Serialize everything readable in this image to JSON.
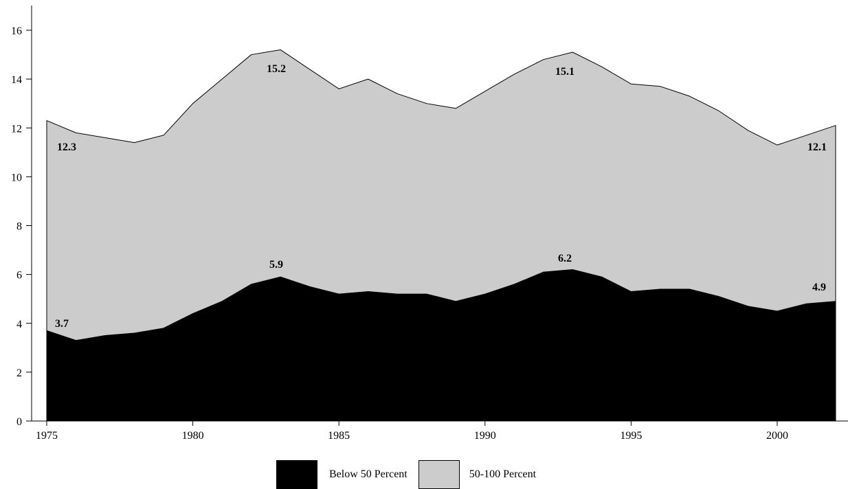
{
  "chart_data": {
    "type": "area",
    "stacked": true,
    "x": [
      1975,
      1976,
      1977,
      1978,
      1979,
      1980,
      1981,
      1982,
      1983,
      1984,
      1985,
      1986,
      1987,
      1988,
      1989,
      1990,
      1991,
      1992,
      1993,
      1994,
      1995,
      1996,
      1997,
      1998,
      1999,
      2000,
      2001,
      2002
    ],
    "series": [
      {
        "name": "Below 50 Percent",
        "color": "#000000",
        "values": [
          3.7,
          3.3,
          3.5,
          3.6,
          3.8,
          4.4,
          4.9,
          5.6,
          5.9,
          5.5,
          5.2,
          5.3,
          5.2,
          5.2,
          4.9,
          5.2,
          5.6,
          6.1,
          6.2,
          5.9,
          5.3,
          5.4,
          5.4,
          5.1,
          4.7,
          4.5,
          4.8,
          4.9
        ]
      },
      {
        "name": "50-100 Percent",
        "color": "#cccccc",
        "totals": [
          12.3,
          11.8,
          11.6,
          11.4,
          11.7,
          13.0,
          14.0,
          15.0,
          15.2,
          14.4,
          13.6,
          14.0,
          13.4,
          13.0,
          12.8,
          13.5,
          14.2,
          14.8,
          15.1,
          14.5,
          13.8,
          13.7,
          13.3,
          12.7,
          11.9,
          11.3,
          11.7,
          12.1
        ]
      }
    ],
    "ylim": [
      0,
      17
    ],
    "yticks": [
      "0",
      "2",
      "4",
      "6",
      "8",
      "10",
      "12",
      "14",
      "16"
    ],
    "xticks": [
      "1975",
      "1980",
      "1985",
      "1990",
      "1995",
      "2000"
    ],
    "annotations": [
      {
        "x": 1975,
        "y": 3.7,
        "text": "3.7"
      },
      {
        "x": 1983,
        "y": 5.9,
        "text": "5.9"
      },
      {
        "x": 1993,
        "y": 6.2,
        "text": "6.2"
      },
      {
        "x": 2002,
        "y": 4.9,
        "text": "4.9"
      },
      {
        "x": 1975,
        "y": 12.3,
        "text": "12.3"
      },
      {
        "x": 1983,
        "y": 15.2,
        "text": "15.2"
      },
      {
        "x": 1993,
        "y": 15.1,
        "text": "15.1"
      },
      {
        "x": 2002,
        "y": 12.1,
        "text": "12.1"
      }
    ],
    "grid": false,
    "legend_position": "bottom"
  }
}
